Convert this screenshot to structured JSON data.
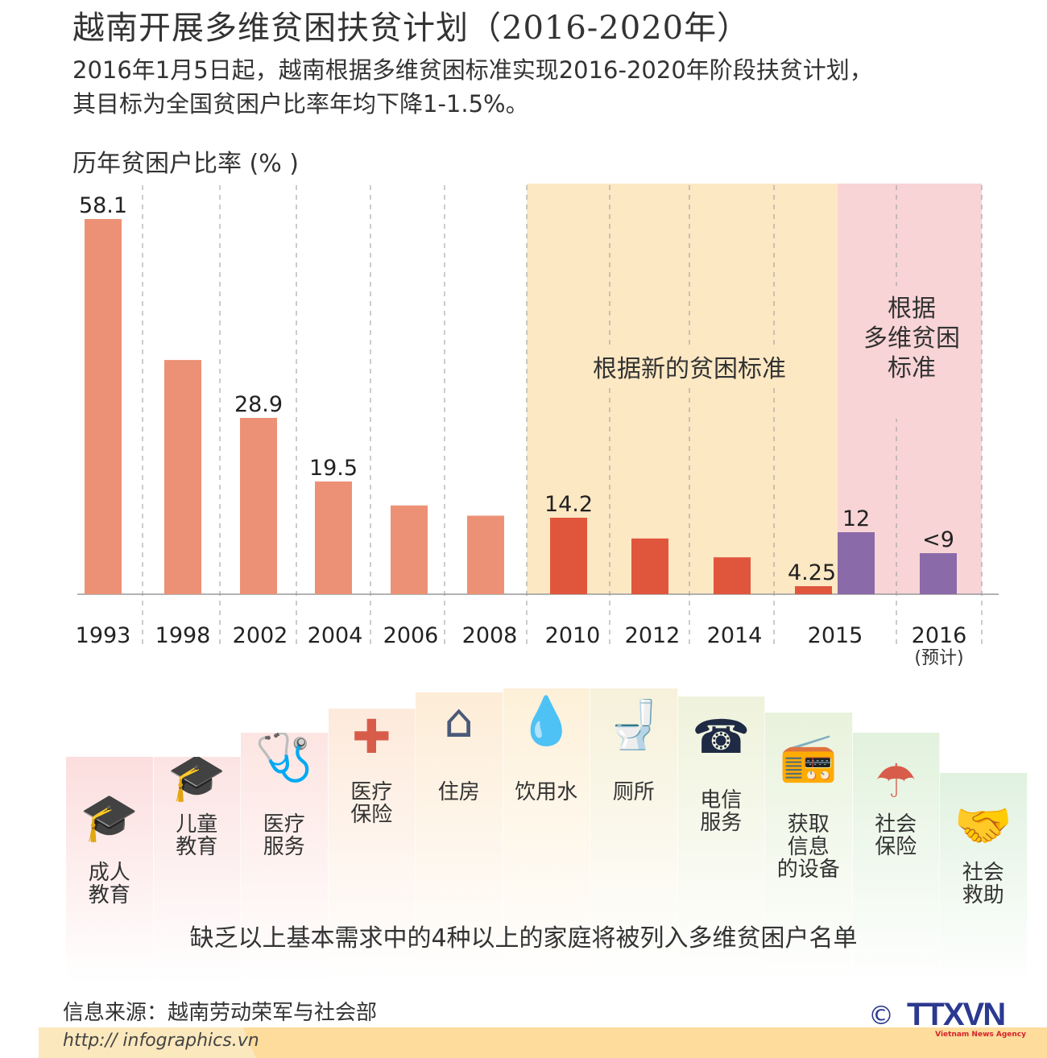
{
  "header": {
    "title": "越南开展多维贫困扶贫计划（2016-2020年）",
    "subtitle_line1": "2016年1月5日起，越南根据多维贫困标准实现2016-2020年阶段扶贫计划，",
    "subtitle_line2": "其目标为全国贫困户比率年均下降1-1.5%。"
  },
  "chart_data": {
    "type": "bar",
    "title": "历年贫困户比率 (% )",
    "xlabel": "",
    "ylabel": "",
    "categories": [
      "1993",
      "1998",
      "2002",
      "2004",
      "2006",
      "2008",
      "2010",
      "2012",
      "2014",
      "2015",
      "2015",
      "2016"
    ],
    "category_notes": {
      "2016": "(预计)"
    },
    "values": [
      58.1,
      37.4,
      28.9,
      19.5,
      16.0,
      14.5,
      14.2,
      11.1,
      8.4,
      4.25,
      12,
      9
    ],
    "data_labels": [
      "58.1",
      "",
      "28.9",
      "19.5",
      "",
      "",
      "14.2",
      "",
      "",
      "4.25",
      "12",
      "<9"
    ],
    "bar_colors": [
      "#ec9175",
      "#ec9175",
      "#ec9175",
      "#ec9175",
      "#ec9175",
      "#ec9175",
      "#e0563d",
      "#e0563d",
      "#e0563d",
      "#e0563d",
      "#8a6aa8",
      "#8a6aa8"
    ],
    "bands": [
      {
        "label": "根据新的贫困标准",
        "from": "2010",
        "to": "2015",
        "color": "#fde8c4"
      },
      {
        "label_lines": [
          "根据",
          "多维贫困",
          "标准"
        ],
        "from": "2015",
        "to": "2016",
        "color": "#f8d4d6"
      }
    ],
    "grid": "dashed vertical"
  },
  "needs": {
    "items": [
      {
        "label": [
          "成人",
          "教育"
        ],
        "icon": "graduation-cap-icon",
        "glyph": "🎓"
      },
      {
        "label": [
          "儿童",
          "教育"
        ],
        "icon": "graduation-cap-icon",
        "glyph": "🎓"
      },
      {
        "label": [
          "医疗",
          "服务"
        ],
        "icon": "stethoscope-icon",
        "glyph": "🩺"
      },
      {
        "label": [
          "医疗",
          "保险"
        ],
        "icon": "medical-cross-icon",
        "glyph": "✚"
      },
      {
        "label": [
          "住房"
        ],
        "icon": "house-icon",
        "glyph": "⌂"
      },
      {
        "label": [
          "饮用水"
        ],
        "icon": "water-drop-icon",
        "glyph": "💧"
      },
      {
        "label": [
          "厕所"
        ],
        "icon": "toilet-icon",
        "glyph": "🚽"
      },
      {
        "label": [
          "电信",
          "服务"
        ],
        "icon": "telephone-icon",
        "glyph": "☎"
      },
      {
        "label": [
          "获取",
          "信息",
          "的设备"
        ],
        "icon": "radio-icon",
        "glyph": "📻"
      },
      {
        "label": [
          "社会",
          "保险"
        ],
        "icon": "umbrella-icon",
        "glyph": "☂"
      },
      {
        "label": [
          "社会",
          "救助"
        ],
        "icon": "handshake-icon",
        "glyph": "🤝"
      }
    ],
    "caption": "缺乏以上基本需求中的4种以上的家庭将被列入多维贫困户名单"
  },
  "footer": {
    "source": "信息来源：越南劳动荣军与社会部",
    "url": "http:// infographics.vn",
    "logo": "TTXVN",
    "logo_sub": "Vietnam News Agency",
    "copyright": "©"
  }
}
